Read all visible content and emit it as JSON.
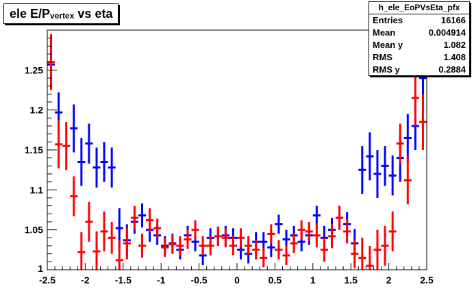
{
  "title": {
    "prefix": "ele E/P",
    "sub": "vertex",
    "suffix": " vs eta"
  },
  "stats": {
    "name": "h_ele_EoPVsEta_pfx",
    "rows": [
      {
        "label": "Entries",
        "value": "16166"
      },
      {
        "label": "Mean",
        "value": "0.004914"
      },
      {
        "label": "Mean y",
        "value": "1.082"
      },
      {
        "label": "RMS",
        "value": "1.408"
      },
      {
        "label": "RMS y",
        "value": "0.2884"
      }
    ]
  },
  "chart_data": {
    "type": "scatter",
    "title": "ele E/P vertex vs eta",
    "xlim": [
      -2.5,
      2.5
    ],
    "ylim": [
      1.0,
      1.3
    ],
    "xticks": [
      -2.5,
      -2,
      -1.5,
      -1,
      -0.5,
      0,
      0.5,
      1,
      1.5,
      2,
      2.5
    ],
    "xtick_labels": [
      "-2.5",
      "-2",
      "-1.5",
      "-1",
      "-0.5",
      "0",
      "0.5",
      "1",
      "1.5",
      "2",
      "2.5"
    ],
    "yticks": [
      1.05,
      1.1,
      1.15,
      1.2,
      1.25
    ],
    "ytick_labels": [
      "1.05",
      "1.1",
      "1.15",
      "1.2",
      "1.25"
    ],
    "y_bottom_label": "1",
    "series": [
      {
        "color": "#0000ff",
        "x": [
          -2.45,
          -2.35,
          -2.15,
          -2.05,
          -1.95,
          -1.85,
          -1.75,
          -1.65,
          -1.55,
          -1.45,
          -1.35,
          -1.25,
          -1.15,
          -1.05,
          -0.95,
          -0.85,
          -0.75,
          -0.65,
          -0.55,
          -0.45,
          -0.35,
          -0.25,
          -0.15,
          -0.05,
          0.05,
          0.15,
          0.25,
          0.35,
          0.45,
          0.55,
          0.65,
          0.75,
          0.85,
          0.95,
          1.05,
          1.15,
          1.25,
          1.35,
          1.45,
          1.55,
          1.65,
          1.75,
          1.85,
          1.95,
          2.05,
          2.15,
          2.25,
          2.35,
          2.45
        ],
        "y": [
          1.257,
          1.197,
          1.177,
          1.135,
          1.158,
          1.128,
          1.135,
          1.128,
          1.052,
          1.037,
          1.06,
          1.068,
          1.05,
          1.043,
          1.03,
          1.033,
          1.025,
          1.043,
          1.035,
          1.018,
          1.04,
          1.042,
          1.043,
          1.04,
          1.025,
          1.02,
          1.035,
          1.035,
          1.028,
          1.057,
          1.038,
          1.043,
          1.035,
          1.043,
          1.068,
          1.04,
          1.05,
          1.065,
          1.057,
          1.033,
          1.125,
          1.142,
          1.12,
          1.13,
          1.118,
          1.14,
          1.165,
          1.18,
          1.24
        ],
        "err": [
          0.03,
          0.025,
          0.03,
          0.03,
          0.025,
          0.025,
          0.025,
          0.025,
          0.025,
          0.02,
          0.015,
          0.015,
          0.015,
          0.012,
          0.012,
          0.012,
          0.012,
          0.012,
          0.012,
          0.012,
          0.012,
          0.012,
          0.012,
          0.012,
          0.012,
          0.012,
          0.012,
          0.012,
          0.012,
          0.012,
          0.012,
          0.012,
          0.012,
          0.012,
          0.012,
          0.015,
          0.015,
          0.015,
          0.015,
          0.018,
          0.03,
          0.03,
          0.03,
          0.025,
          0.025,
          0.03,
          0.03,
          0.03,
          0.04
        ]
      },
      {
        "color": "#ff0000",
        "x": [
          -2.45,
          -2.35,
          -2.25,
          -2.15,
          -2.05,
          -1.95,
          -1.85,
          -1.75,
          -1.65,
          -1.55,
          -1.45,
          -1.35,
          -1.25,
          -1.15,
          -1.05,
          -0.95,
          -0.85,
          -0.75,
          -0.65,
          -0.55,
          -0.45,
          -0.35,
          -0.25,
          -0.15,
          -0.05,
          0.05,
          0.15,
          0.25,
          0.35,
          0.45,
          0.55,
          0.65,
          0.75,
          0.85,
          0.95,
          1.05,
          1.15,
          1.25,
          1.35,
          1.45,
          1.55,
          1.65,
          1.75,
          1.85,
          1.95,
          2.05,
          2.15,
          2.25,
          2.35,
          2.45
        ],
        "y": [
          1.26,
          1.157,
          1.155,
          1.092,
          1.022,
          1.06,
          1.023,
          1.048,
          1.04,
          1.012,
          1.033,
          1.065,
          1.03,
          1.062,
          1.052,
          1.028,
          1.032,
          1.03,
          1.038,
          1.05,
          1.03,
          1.03,
          1.042,
          1.04,
          1.03,
          1.04,
          1.03,
          1.025,
          1.015,
          1.045,
          1.025,
          1.018,
          1.033,
          1.05,
          1.048,
          1.043,
          1.025,
          1.042,
          1.065,
          1.048,
          1.02,
          1.015,
          1.005,
          1.025,
          1.03,
          1.048,
          1.158,
          1.112,
          1.215,
          1.185
        ],
        "err": [
          0.035,
          0.03,
          0.03,
          0.025,
          0.025,
          0.025,
          0.025,
          0.025,
          0.02,
          0.025,
          0.02,
          0.015,
          0.015,
          0.015,
          0.012,
          0.012,
          0.012,
          0.012,
          0.012,
          0.012,
          0.012,
          0.012,
          0.012,
          0.012,
          0.012,
          0.012,
          0.012,
          0.012,
          0.012,
          0.012,
          0.012,
          0.012,
          0.012,
          0.012,
          0.012,
          0.015,
          0.015,
          0.015,
          0.015,
          0.015,
          0.018,
          0.025,
          0.025,
          0.025,
          0.025,
          0.025,
          0.025,
          0.03,
          0.035,
          0.035
        ]
      }
    ]
  }
}
